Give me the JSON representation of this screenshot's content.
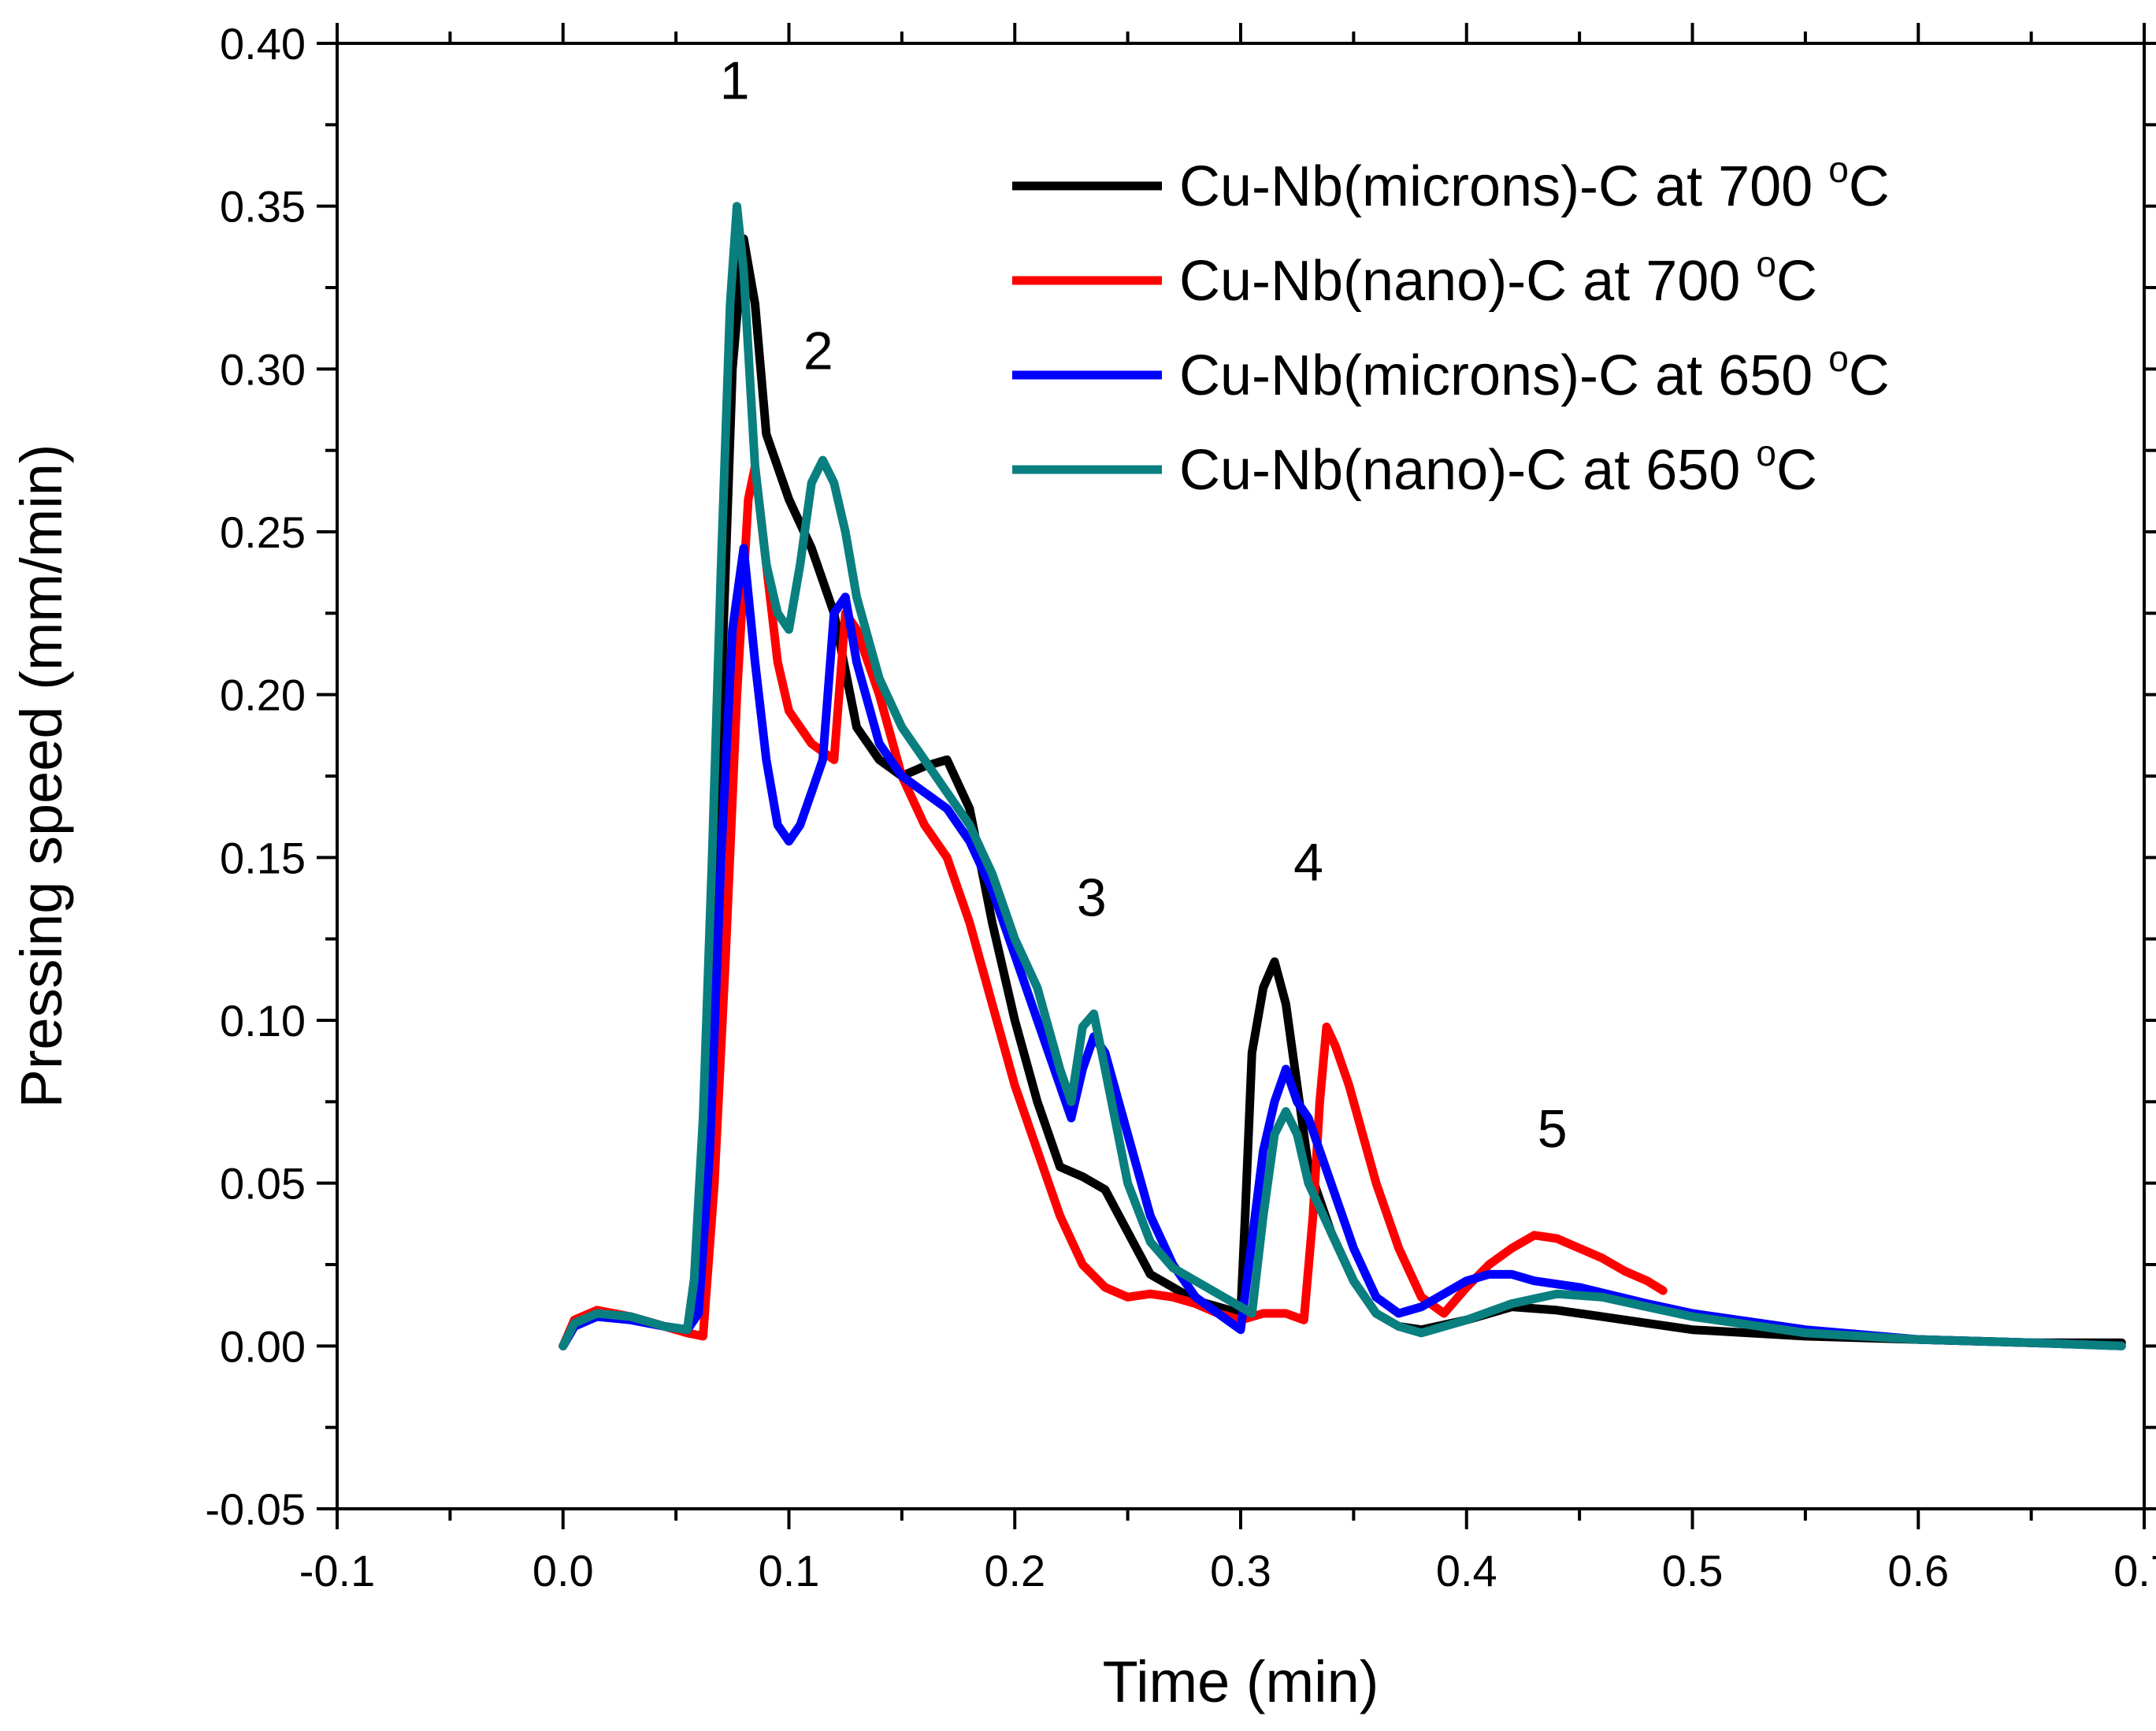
{
  "chart_data": {
    "type": "line",
    "title": "",
    "xlabel": "Time (min)",
    "ylabel": "Pressing speed (mm/min)",
    "xlim": [
      -0.1,
      0.7
    ],
    "ylim": [
      -0.05,
      0.4
    ],
    "xticks": [
      -0.1,
      0.0,
      0.1,
      0.2,
      0.3,
      0.4,
      0.5,
      0.6,
      0.7
    ],
    "xtick_labels": [
      "-0.1",
      "0.0",
      "0.1",
      "0.2",
      "0.3",
      "0.4",
      "0.5",
      "0.6",
      "0.7"
    ],
    "yticks": [
      -0.05,
      0.0,
      0.05,
      0.1,
      0.15,
      0.2,
      0.25,
      0.3,
      0.35,
      0.4
    ],
    "ytick_labels": [
      "-0.05",
      "0.00",
      "0.05",
      "0.10",
      "0.15",
      "0.20",
      "0.25",
      "0.30",
      "0.35",
      "0.40"
    ],
    "grid": false,
    "legend_position": "top-right",
    "annotations": [
      {
        "text": "1",
        "x": 0.076,
        "y": 0.383
      },
      {
        "text": "2",
        "x": 0.113,
        "y": 0.3
      },
      {
        "text": "3",
        "x": 0.234,
        "y": 0.132
      },
      {
        "text": "4",
        "x": 0.33,
        "y": 0.143
      },
      {
        "text": "5",
        "x": 0.438,
        "y": 0.061
      }
    ],
    "series": [
      {
        "name": "Cu-Nb(microns)-C at 700 ",
        "superscript": "o",
        "unit": "C",
        "color": "#000000",
        "x": [
          0.0,
          0.005,
          0.015,
          0.03,
          0.045,
          0.055,
          0.06,
          0.065,
          0.07,
          0.075,
          0.08,
          0.085,
          0.09,
          0.1,
          0.11,
          0.12,
          0.13,
          0.14,
          0.15,
          0.16,
          0.17,
          0.18,
          0.19,
          0.2,
          0.21,
          0.22,
          0.23,
          0.24,
          0.25,
          0.26,
          0.27,
          0.28,
          0.29,
          0.3,
          0.302,
          0.305,
          0.31,
          0.315,
          0.32,
          0.325,
          0.33,
          0.34,
          0.35,
          0.36,
          0.37,
          0.38,
          0.4,
          0.42,
          0.44,
          0.46,
          0.48,
          0.5,
          0.55,
          0.6,
          0.65,
          0.69
        ],
        "y": [
          0.0,
          0.006,
          0.01,
          0.009,
          0.006,
          0.005,
          0.03,
          0.09,
          0.2,
          0.3,
          0.34,
          0.32,
          0.28,
          0.26,
          0.245,
          0.225,
          0.19,
          0.18,
          0.175,
          0.178,
          0.18,
          0.165,
          0.13,
          0.1,
          0.075,
          0.055,
          0.052,
          0.048,
          0.035,
          0.022,
          0.018,
          0.014,
          0.012,
          0.01,
          0.04,
          0.09,
          0.11,
          0.118,
          0.105,
          0.08,
          0.055,
          0.035,
          0.02,
          0.01,
          0.006,
          0.005,
          0.008,
          0.012,
          0.011,
          0.009,
          0.007,
          0.005,
          0.003,
          0.002,
          0.001,
          0.001
        ]
      },
      {
        "name": "Cu-Nb(nano)-C at 700 ",
        "superscript": "o",
        "unit": "C",
        "color": "#ff0000",
        "x": [
          0.0,
          0.005,
          0.015,
          0.03,
          0.045,
          0.055,
          0.062,
          0.067,
          0.072,
          0.077,
          0.082,
          0.085,
          0.09,
          0.095,
          0.1,
          0.11,
          0.12,
          0.125,
          0.13,
          0.14,
          0.15,
          0.16,
          0.17,
          0.18,
          0.19,
          0.2,
          0.21,
          0.22,
          0.23,
          0.24,
          0.25,
          0.26,
          0.27,
          0.28,
          0.29,
          0.3,
          0.31,
          0.32,
          0.328,
          0.332,
          0.335,
          0.338,
          0.342,
          0.348,
          0.36,
          0.37,
          0.38,
          0.39,
          0.4,
          0.41,
          0.42,
          0.43,
          0.44,
          0.45,
          0.46,
          0.47,
          0.48,
          0.487
        ],
        "y": [
          0.0,
          0.008,
          0.011,
          0.009,
          0.006,
          0.004,
          0.003,
          0.05,
          0.12,
          0.2,
          0.26,
          0.27,
          0.24,
          0.21,
          0.195,
          0.185,
          0.18,
          0.225,
          0.22,
          0.2,
          0.175,
          0.16,
          0.15,
          0.13,
          0.105,
          0.08,
          0.06,
          0.04,
          0.025,
          0.018,
          0.015,
          0.016,
          0.015,
          0.013,
          0.01,
          0.008,
          0.01,
          0.01,
          0.008,
          0.04,
          0.075,
          0.098,
          0.092,
          0.08,
          0.05,
          0.03,
          0.015,
          0.01,
          0.018,
          0.025,
          0.03,
          0.034,
          0.033,
          0.03,
          0.027,
          0.023,
          0.02,
          0.017
        ]
      },
      {
        "name": "Cu-Nb(microns)-C at 650 ",
        "superscript": "o",
        "unit": "C",
        "color": "#0000ff",
        "x": [
          0.0,
          0.005,
          0.015,
          0.03,
          0.045,
          0.055,
          0.06,
          0.065,
          0.07,
          0.075,
          0.08,
          0.085,
          0.09,
          0.095,
          0.1,
          0.105,
          0.11,
          0.115,
          0.12,
          0.125,
          0.13,
          0.14,
          0.15,
          0.16,
          0.17,
          0.18,
          0.19,
          0.2,
          0.21,
          0.22,
          0.225,
          0.23,
          0.235,
          0.24,
          0.25,
          0.26,
          0.27,
          0.28,
          0.29,
          0.3,
          0.31,
          0.315,
          0.32,
          0.325,
          0.33,
          0.34,
          0.35,
          0.36,
          0.37,
          0.38,
          0.39,
          0.4,
          0.41,
          0.42,
          0.43,
          0.45,
          0.48,
          0.5,
          0.55,
          0.6,
          0.65,
          0.69
        ],
        "y": [
          0.0,
          0.006,
          0.009,
          0.008,
          0.006,
          0.005,
          0.01,
          0.06,
          0.15,
          0.22,
          0.245,
          0.21,
          0.18,
          0.16,
          0.155,
          0.16,
          0.17,
          0.18,
          0.225,
          0.23,
          0.21,
          0.185,
          0.175,
          0.17,
          0.165,
          0.155,
          0.14,
          0.12,
          0.1,
          0.08,
          0.07,
          0.085,
          0.095,
          0.09,
          0.065,
          0.04,
          0.025,
          0.015,
          0.01,
          0.005,
          0.06,
          0.075,
          0.085,
          0.075,
          0.07,
          0.05,
          0.03,
          0.015,
          0.01,
          0.012,
          0.016,
          0.02,
          0.022,
          0.022,
          0.02,
          0.018,
          0.013,
          0.01,
          0.005,
          0.002,
          0.001,
          0.0
        ]
      },
      {
        "name": "Cu-Nb(nano)-C at 650 ",
        "superscript": "o",
        "unit": "C",
        "color": "#0a7f7f",
        "x": [
          0.0,
          0.005,
          0.015,
          0.03,
          0.045,
          0.055,
          0.058,
          0.062,
          0.066,
          0.07,
          0.074,
          0.077,
          0.08,
          0.085,
          0.09,
          0.095,
          0.1,
          0.105,
          0.11,
          0.115,
          0.12,
          0.125,
          0.13,
          0.14,
          0.15,
          0.16,
          0.17,
          0.18,
          0.19,
          0.2,
          0.21,
          0.22,
          0.225,
          0.23,
          0.235,
          0.24,
          0.25,
          0.26,
          0.27,
          0.28,
          0.29,
          0.3,
          0.305,
          0.31,
          0.315,
          0.32,
          0.325,
          0.33,
          0.34,
          0.35,
          0.36,
          0.37,
          0.38,
          0.4,
          0.42,
          0.44,
          0.46,
          0.48,
          0.5,
          0.55,
          0.6,
          0.65,
          0.69
        ],
        "y": [
          0.0,
          0.007,
          0.01,
          0.009,
          0.006,
          0.005,
          0.02,
          0.07,
          0.15,
          0.24,
          0.32,
          0.35,
          0.33,
          0.27,
          0.24,
          0.225,
          0.22,
          0.24,
          0.265,
          0.272,
          0.265,
          0.25,
          0.23,
          0.205,
          0.19,
          0.18,
          0.17,
          0.16,
          0.145,
          0.125,
          0.11,
          0.085,
          0.075,
          0.098,
          0.102,
          0.085,
          0.05,
          0.032,
          0.024,
          0.02,
          0.016,
          0.012,
          0.01,
          0.04,
          0.065,
          0.072,
          0.065,
          0.05,
          0.035,
          0.02,
          0.01,
          0.006,
          0.004,
          0.008,
          0.013,
          0.016,
          0.015,
          0.012,
          0.009,
          0.004,
          0.002,
          0.001,
          0.0
        ]
      }
    ]
  }
}
